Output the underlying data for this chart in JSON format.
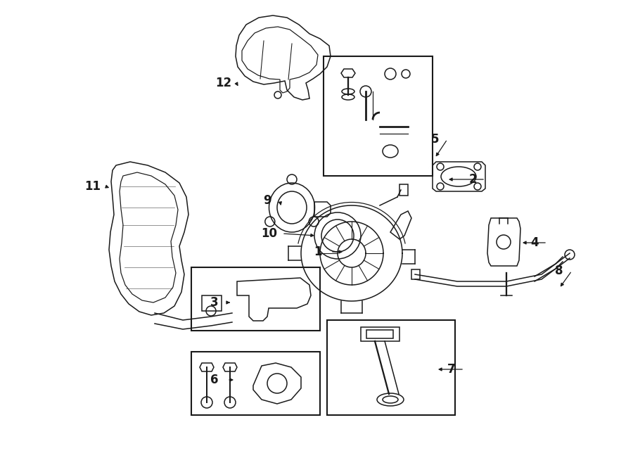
{
  "bg_color": "#ffffff",
  "line_color": "#1a1a1a",
  "fig_width": 9.0,
  "fig_height": 6.61,
  "dpi": 100,
  "lw": 1.1
}
